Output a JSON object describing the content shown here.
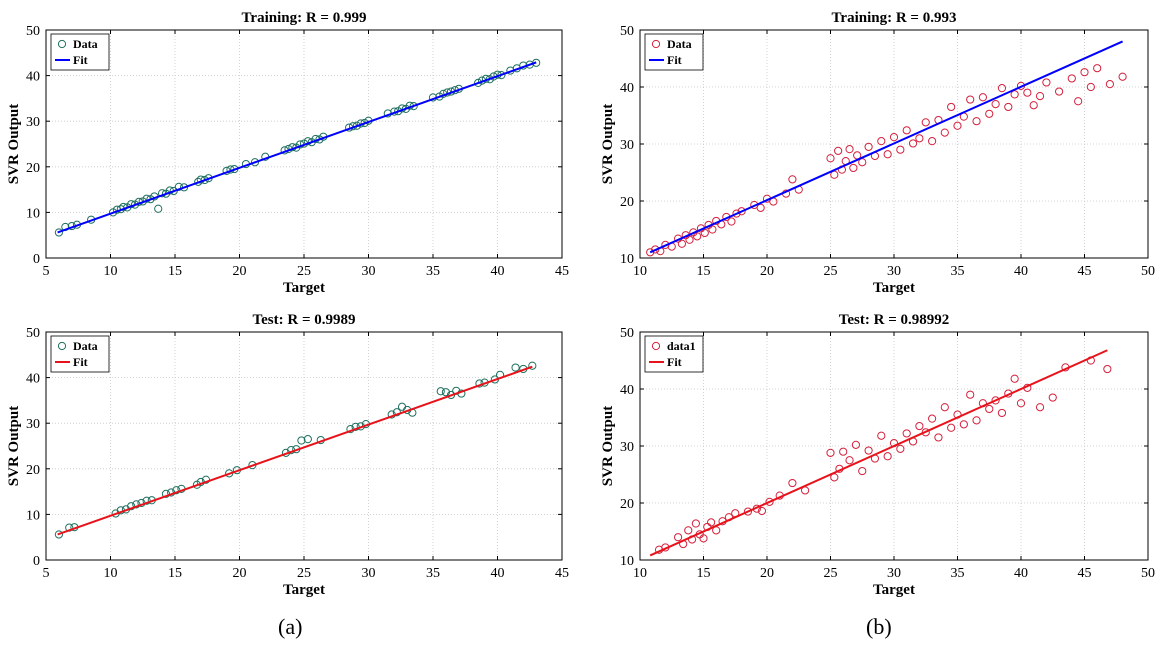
{
  "figure": {
    "panel_labels": [
      "(a)",
      "(b)"
    ]
  },
  "chart_data": [
    {
      "id": "a-train",
      "type": "scatter",
      "title": "Training: R = 0.999",
      "xlabel": "Target",
      "ylabel": "SVR Output",
      "xlim": [
        5,
        45
      ],
      "ylim": [
        0,
        50
      ],
      "xticks": [
        5,
        10,
        15,
        20,
        25,
        30,
        35,
        40,
        45
      ],
      "yticks": [
        0,
        10,
        20,
        30,
        40,
        50
      ],
      "grid": true,
      "legend_position": "top-left",
      "marker_color": "#1f6f5f",
      "fit_color": "#0000ff",
      "series": [
        {
          "name": "Data",
          "kind": "points",
          "x": [
            6.0,
            6.5,
            7.0,
            7.4,
            8.5,
            10.2,
            10.5,
            10.8,
            11.0,
            11.3,
            11.6,
            11.9,
            12.2,
            12.5,
            12.8,
            13.1,
            13.4,
            13.7,
            14.0,
            14.3,
            14.6,
            14.9,
            15.3,
            15.7,
            16.8,
            17.0,
            17.3,
            17.6,
            19.0,
            19.3,
            19.6,
            20.5,
            21.2,
            22.0,
            23.5,
            23.8,
            24.1,
            24.4,
            24.7,
            25.0,
            25.3,
            25.6,
            25.9,
            26.2,
            26.5,
            28.5,
            28.8,
            29.1,
            29.4,
            29.7,
            30.0,
            31.5,
            32.0,
            32.3,
            32.6,
            32.9,
            33.2,
            33.5,
            35.0,
            35.5,
            35.8,
            36.1,
            36.4,
            36.7,
            37.0,
            38.5,
            38.8,
            39.1,
            39.4,
            39.7,
            40.0,
            40.3,
            41.0,
            41.5,
            42.0,
            42.5,
            43.0
          ],
          "y": [
            5.6,
            6.8,
            7.0,
            7.3,
            8.4,
            10.0,
            10.6,
            10.7,
            11.2,
            11.1,
            11.8,
            11.7,
            12.3,
            12.4,
            13.0,
            12.9,
            13.5,
            10.8,
            14.2,
            14.1,
            14.8,
            14.7,
            15.6,
            15.5,
            16.7,
            17.2,
            17.1,
            17.5,
            19.1,
            19.4,
            19.5,
            20.6,
            21.0,
            22.2,
            23.6,
            23.9,
            24.3,
            24.2,
            24.9,
            25.1,
            25.6,
            25.4,
            26.1,
            26.0,
            26.6,
            28.6,
            28.9,
            29.0,
            29.5,
            29.6,
            30.1,
            31.7,
            32.1,
            32.2,
            32.8,
            32.7,
            33.4,
            33.3,
            35.2,
            35.4,
            36.0,
            36.3,
            36.5,
            36.8,
            37.1,
            38.4,
            38.9,
            39.3,
            39.2,
            39.8,
            40.2,
            40.1,
            41.1,
            41.6,
            42.2,
            42.4,
            42.8
          ]
        },
        {
          "name": "Fit",
          "kind": "line",
          "x": [
            5.9,
            43.0
          ],
          "y": [
            5.6,
            42.9
          ]
        }
      ]
    },
    {
      "id": "b-train",
      "type": "scatter",
      "title": "Training: R = 0.993",
      "xlabel": "Target",
      "ylabel": "SVR Output",
      "xlim": [
        10,
        50
      ],
      "ylim": [
        10,
        50
      ],
      "xticks": [
        10,
        15,
        20,
        25,
        30,
        35,
        40,
        45,
        50
      ],
      "yticks": [
        10,
        20,
        30,
        40,
        50
      ],
      "grid": true,
      "legend_position": "top-left",
      "marker_color": "#d4213d",
      "fit_color": "#0000ff",
      "series": [
        {
          "name": "Data",
          "kind": "points",
          "x": [
            10.8,
            11.2,
            11.6,
            12.0,
            12.5,
            13.0,
            13.3,
            13.6,
            13.9,
            14.2,
            14.5,
            14.8,
            15.1,
            15.4,
            15.7,
            16.0,
            16.4,
            16.8,
            17.2,
            17.6,
            18.0,
            19.0,
            19.5,
            20.0,
            20.5,
            21.5,
            22.0,
            22.5,
            25.0,
            25.3,
            25.6,
            25.9,
            26.2,
            26.5,
            26.8,
            27.1,
            27.5,
            28.0,
            28.5,
            29.0,
            29.5,
            30.0,
            30.5,
            31.0,
            31.5,
            32.0,
            32.5,
            33.0,
            33.5,
            34.0,
            34.5,
            35.0,
            35.5,
            36.0,
            36.5,
            37.0,
            37.5,
            38.0,
            38.5,
            39.0,
            39.5,
            40.0,
            40.5,
            41.0,
            41.5,
            42.0,
            43.0,
            44.0,
            44.5,
            45.0,
            45.5,
            46.0,
            47.0,
            48.0
          ],
          "y": [
            11.0,
            11.5,
            11.2,
            12.3,
            12.0,
            13.4,
            12.5,
            14.0,
            13.2,
            14.5,
            13.8,
            15.2,
            14.4,
            15.8,
            15.0,
            16.5,
            15.9,
            17.2,
            16.4,
            17.8,
            18.2,
            19.3,
            18.8,
            20.4,
            19.9,
            21.3,
            23.8,
            22.0,
            27.5,
            24.6,
            28.8,
            25.5,
            27.0,
            29.1,
            25.8,
            28.0,
            26.8,
            29.5,
            27.9,
            30.5,
            28.2,
            31.2,
            29.0,
            32.4,
            30.1,
            31.0,
            33.8,
            30.5,
            34.2,
            32.0,
            36.5,
            33.2,
            34.8,
            37.8,
            34.0,
            38.2,
            35.3,
            37.0,
            39.8,
            36.5,
            38.7,
            40.2,
            39.0,
            36.8,
            38.4,
            40.8,
            39.2,
            41.5,
            37.5,
            42.6,
            40.0,
            43.3,
            40.5,
            41.8
          ]
        },
        {
          "name": "Fit",
          "kind": "line",
          "x": [
            10.8,
            48.0
          ],
          "y": [
            11.0,
            48.0
          ]
        }
      ]
    },
    {
      "id": "a-test",
      "type": "scatter",
      "title": "Test: R = 0.9989",
      "xlabel": "Target",
      "ylabel": "SVR Output",
      "xlim": [
        5,
        45
      ],
      "ylim": [
        0,
        50
      ],
      "xticks": [
        5,
        10,
        15,
        20,
        25,
        30,
        35,
        40,
        45
      ],
      "yticks": [
        0,
        10,
        20,
        30,
        40,
        50
      ],
      "grid": true,
      "legend_position": "top-left",
      "marker_color": "#1f6f5f",
      "fit_color": "#e8121a",
      "series": [
        {
          "name": "Data",
          "kind": "points",
          "x": [
            6.0,
            6.8,
            7.2,
            10.4,
            10.8,
            11.2,
            11.6,
            12.0,
            12.4,
            12.8,
            13.2,
            14.3,
            14.7,
            15.1,
            15.5,
            16.7,
            17.0,
            17.4,
            19.2,
            19.8,
            21.0,
            23.6,
            24.0,
            24.4,
            24.8,
            25.3,
            26.3,
            28.6,
            29.0,
            29.4,
            29.8,
            31.8,
            32.2,
            32.6,
            33.0,
            33.4,
            35.6,
            36.0,
            36.4,
            36.8,
            37.2,
            38.6,
            39.0,
            39.8,
            40.2,
            41.4,
            42.0,
            42.7
          ],
          "y": [
            5.6,
            7.1,
            7.2,
            10.2,
            10.9,
            11.1,
            11.8,
            12.2,
            12.5,
            13.0,
            13.1,
            14.5,
            14.8,
            15.3,
            15.6,
            16.5,
            17.1,
            17.6,
            19.0,
            19.7,
            20.8,
            23.5,
            24.1,
            24.3,
            26.2,
            26.5,
            26.3,
            28.7,
            29.2,
            29.3,
            29.8,
            31.9,
            32.4,
            33.6,
            32.9,
            32.3,
            37.0,
            36.8,
            36.2,
            37.1,
            36.5,
            38.7,
            38.9,
            39.6,
            40.6,
            42.2,
            41.9,
            42.6
          ]
        },
        {
          "name": "Fit",
          "kind": "line",
          "x": [
            5.9,
            42.7
          ],
          "y": [
            5.6,
            42.4
          ]
        }
      ]
    },
    {
      "id": "b-test",
      "type": "scatter",
      "title": "Test: R = 0.98992",
      "xlabel": "Target",
      "ylabel": "SVR Output",
      "xlim": [
        10,
        50
      ],
      "ylim": [
        10,
        50
      ],
      "xticks": [
        10,
        15,
        20,
        25,
        30,
        35,
        40,
        45,
        50
      ],
      "yticks": [
        10,
        20,
        30,
        40,
        50
      ],
      "grid": true,
      "legend_position": "top-left",
      "marker_color": "#d4213d",
      "fit_color": "#e8121a",
      "series": [
        {
          "name": "data1",
          "kind": "points",
          "x": [
            11.5,
            12.0,
            13.0,
            13.4,
            13.8,
            14.1,
            14.4,
            14.7,
            15.0,
            15.3,
            15.6,
            16.0,
            16.5,
            17.0,
            17.5,
            18.5,
            19.2,
            19.6,
            20.2,
            21.0,
            22.0,
            23.0,
            25.0,
            25.3,
            25.7,
            26.0,
            26.5,
            27.0,
            27.5,
            28.0,
            28.5,
            29.0,
            29.5,
            30.0,
            30.5,
            31.0,
            31.5,
            32.0,
            32.5,
            33.0,
            33.5,
            34.0,
            34.5,
            35.0,
            35.5,
            36.0,
            36.5,
            37.0,
            37.5,
            38.0,
            38.5,
            39.0,
            39.5,
            40.0,
            40.5,
            41.5,
            42.5,
            43.5,
            45.5,
            46.8
          ],
          "y": [
            11.8,
            12.2,
            14.0,
            12.8,
            15.2,
            13.6,
            16.4,
            14.5,
            13.8,
            15.8,
            16.6,
            15.2,
            16.8,
            17.5,
            18.2,
            18.5,
            19.0,
            18.6,
            20.2,
            21.3,
            23.5,
            22.2,
            28.8,
            24.5,
            26.0,
            29.0,
            27.5,
            30.2,
            25.6,
            29.2,
            27.8,
            31.8,
            28.2,
            30.5,
            29.5,
            32.2,
            30.8,
            33.5,
            32.4,
            34.8,
            31.5,
            36.8,
            33.2,
            35.5,
            33.8,
            39.0,
            34.5,
            37.5,
            36.5,
            38.0,
            35.8,
            39.2,
            41.8,
            37.5,
            40.2,
            36.8,
            38.5,
            43.8,
            45.0,
            43.5
          ]
        },
        {
          "name": "Fit",
          "kind": "line",
          "x": [
            10.8,
            46.8
          ],
          "y": [
            10.8,
            46.8
          ]
        }
      ]
    }
  ]
}
